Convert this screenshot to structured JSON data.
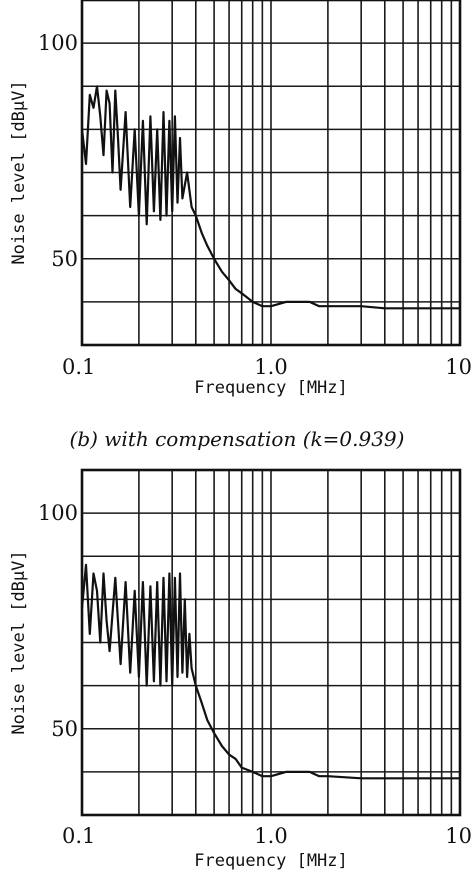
{
  "caption_b": "(b) with compensation (k=0.939)",
  "chart_data": [
    {
      "type": "line",
      "title": "",
      "xlabel": "Frequency [MHz]",
      "ylabel": "Noise level [dBμV]",
      "xscale": "log",
      "xlim": [
        0.1,
        10
      ],
      "ylim": [
        30,
        110
      ],
      "x_tick_labels": [
        "0.1",
        "1.0",
        "10"
      ],
      "y_tick_labels": [
        "100",
        "50"
      ],
      "y_ticks": [
        100,
        50
      ],
      "grid": true,
      "series": [
        {
          "x": [
            0.1,
            0.105,
            0.11,
            0.115,
            0.12,
            0.125,
            0.13,
            0.135,
            0.14,
            0.145,
            0.15,
            0.155,
            0.16,
            0.17,
            0.18,
            0.19,
            0.2,
            0.21,
            0.22,
            0.23,
            0.24,
            0.25,
            0.26,
            0.27,
            0.28,
            0.29,
            0.3,
            0.31,
            0.32,
            0.33,
            0.34,
            0.36,
            0.38,
            0.4,
            0.43,
            0.46,
            0.5,
            0.55,
            0.6,
            0.65,
            0.7,
            0.8,
            0.9,
            1.0,
            1.2,
            1.4,
            1.6,
            1.8,
            2.0,
            3.0,
            4.0,
            5.0,
            6.0,
            8.0,
            10.0
          ],
          "y": [
            80,
            72,
            88,
            85,
            90,
            83,
            74,
            89,
            86,
            70,
            89,
            78,
            66,
            84,
            62,
            80,
            60,
            82,
            58,
            83,
            61,
            80,
            59,
            84,
            60,
            82,
            61,
            83,
            63,
            78,
            64,
            70,
            62,
            60,
            56,
            53,
            50,
            47,
            45,
            43,
            42,
            40,
            39,
            39,
            40,
            40,
            40,
            39,
            39,
            39,
            38.5,
            38.5,
            38.5,
            38.5,
            38.5
          ]
        }
      ]
    },
    {
      "type": "line",
      "title": "(b) with compensation (k=0.939)",
      "xlabel": "Frequency [MHz]",
      "ylabel": "Noise level [dBμV]",
      "xscale": "log",
      "xlim": [
        0.1,
        10
      ],
      "ylim": [
        30,
        110
      ],
      "x_tick_labels": [
        "0.1",
        "1.0",
        "10"
      ],
      "y_tick_labels": [
        "100",
        "50"
      ],
      "y_ticks": [
        100,
        50
      ],
      "grid": true,
      "series": [
        {
          "x": [
            0.1,
            0.105,
            0.11,
            0.115,
            0.12,
            0.125,
            0.13,
            0.135,
            0.14,
            0.15,
            0.16,
            0.17,
            0.18,
            0.19,
            0.2,
            0.21,
            0.22,
            0.23,
            0.24,
            0.25,
            0.26,
            0.27,
            0.28,
            0.29,
            0.3,
            0.31,
            0.32,
            0.33,
            0.34,
            0.35,
            0.36,
            0.37,
            0.38,
            0.4,
            0.43,
            0.46,
            0.5,
            0.55,
            0.6,
            0.65,
            0.7,
            0.8,
            0.9,
            1.0,
            1.2,
            1.4,
            1.6,
            1.8,
            2.0,
            3.0,
            4.0,
            5.0,
            6.0,
            8.0,
            10.0
          ],
          "y": [
            78,
            88,
            72,
            86,
            82,
            70,
            86,
            75,
            68,
            85,
            65,
            84,
            63,
            82,
            62,
            84,
            60,
            83,
            61,
            84,
            60,
            85,
            61,
            86,
            60,
            85,
            62,
            86,
            63,
            80,
            62,
            72,
            64,
            60,
            56,
            52,
            49,
            46,
            44,
            43,
            41,
            40,
            39,
            39,
            40,
            40,
            40,
            39,
            39,
            38.5,
            38.5,
            38.5,
            38.5,
            38.5,
            38.5
          ]
        }
      ]
    }
  ]
}
